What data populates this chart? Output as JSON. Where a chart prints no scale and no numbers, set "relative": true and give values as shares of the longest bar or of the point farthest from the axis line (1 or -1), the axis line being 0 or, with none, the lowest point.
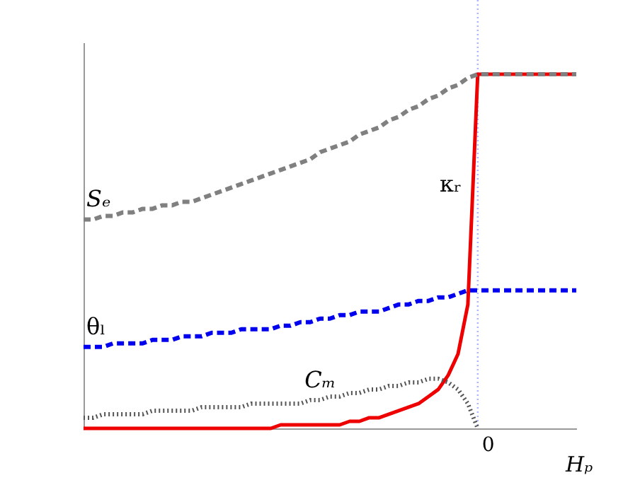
{
  "chart_data": {
    "type": "line",
    "relative": true,
    "xlabel": "Hₚ",
    "grid": false,
    "legend": false,
    "marker": "none",
    "categories": [
      null,
      null,
      null,
      null,
      null,
      null,
      null,
      null,
      null,
      null,
      null,
      null,
      null,
      null,
      null,
      null,
      null,
      null,
      null,
      null,
      null,
      null,
      null,
      null,
      null,
      null,
      null,
      null,
      null,
      null,
      null,
      null,
      null,
      null,
      null,
      null,
      null,
      null,
      null,
      null,
      null,
      null,
      null,
      null,
      null,
      null,
      null,
      null,
      null,
      null,
      null
    ],
    "series": [
      {
        "name": "Sₑ",
        "color": "#808080",
        "line_style": "dashed",
        "values": [
          0.59,
          0.59,
          0.6,
          0.6,
          0.61,
          0.61,
          0.62,
          0.62,
          0.63,
          0.63,
          0.64,
          0.64,
          0.65,
          0.66,
          0.67,
          0.68,
          0.69,
          0.7,
          0.71,
          0.72,
          0.73,
          0.74,
          0.75,
          0.76,
          0.78,
          0.79,
          0.8,
          0.81,
          0.83,
          0.84,
          0.85,
          0.87,
          0.88,
          0.9,
          0.91,
          0.93,
          0.94,
          0.96,
          0.97,
          0.99,
          1.0,
          1.0,
          1.0,
          1.0,
          1.0,
          1.0,
          1.0,
          1.0,
          1.0,
          1.0,
          1.0
        ]
      },
      {
        "name": "θₗ",
        "color": "#0000ee",
        "line_style": "dashed",
        "values": [
          0.23,
          0.23,
          0.23,
          0.24,
          0.24,
          0.24,
          0.24,
          0.25,
          0.25,
          0.25,
          0.26,
          0.26,
          0.26,
          0.27,
          0.27,
          0.27,
          0.28,
          0.28,
          0.28,
          0.28,
          0.29,
          0.29,
          0.3,
          0.3,
          0.31,
          0.31,
          0.32,
          0.32,
          0.33,
          0.33,
          0.33,
          0.34,
          0.35,
          0.35,
          0.36,
          0.36,
          0.37,
          0.37,
          0.38,
          0.39,
          0.39,
          0.39,
          0.39,
          0.39,
          0.39,
          0.39,
          0.39,
          0.39,
          0.39,
          0.39,
          0.39
        ]
      },
      {
        "name": "Cₘ",
        "color": "#555555",
        "line_style": "dotted",
        "values": [
          0.03,
          0.03,
          0.04,
          0.04,
          0.04,
          0.04,
          0.04,
          0.05,
          0.05,
          0.05,
          0.05,
          0.05,
          0.06,
          0.06,
          0.06,
          0.06,
          0.06,
          0.07,
          0.07,
          0.07,
          0.07,
          0.07,
          0.07,
          0.08,
          0.08,
          0.09,
          0.09,
          0.1,
          0.1,
          0.11,
          0.11,
          0.12,
          0.12,
          0.13,
          0.13,
          0.14,
          0.14,
          0.13,
          0.11,
          0.07,
          0.0,
          null,
          null,
          null,
          null,
          null,
          null,
          null,
          null,
          null,
          null
        ]
      },
      {
        "name": "κᵣ",
        "color": "#ee0000",
        "line_style": "solid",
        "values": [
          0.0,
          0.0,
          0.0,
          0.0,
          0.0,
          0.0,
          0.0,
          0.0,
          0.0,
          0.0,
          0.0,
          0.0,
          0.0,
          0.0,
          0.0,
          0.0,
          0.0,
          0.0,
          0.0,
          0.0,
          0.01,
          0.01,
          0.01,
          0.01,
          0.01,
          0.01,
          0.01,
          0.02,
          0.02,
          0.03,
          0.03,
          0.04,
          0.05,
          0.06,
          0.07,
          0.09,
          0.11,
          0.15,
          0.21,
          0.35,
          1.0,
          1.0,
          1.0,
          1.0,
          1.0,
          1.0,
          1.0,
          1.0,
          1.0,
          1.0,
          1.0
        ]
      }
    ],
    "ref_lines": [
      {
        "axis": "x",
        "label": "0",
        "color": "#aab4ff",
        "line_style": "dotted"
      }
    ]
  }
}
